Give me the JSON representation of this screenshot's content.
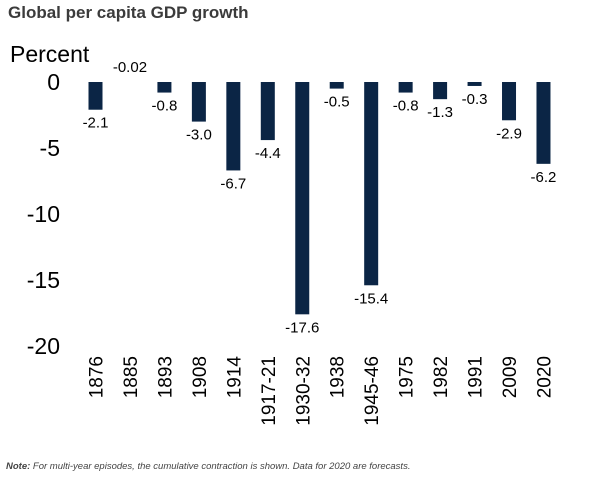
{
  "chart_data": {
    "type": "bar",
    "title": "Global per capita GDP growth",
    "ylabel": "Percent",
    "xlabel": "",
    "categories": [
      "1876",
      "1885",
      "1893",
      "1908",
      "1914",
      "1917-21",
      "1930-32",
      "1938",
      "1945-46",
      "1975",
      "1982",
      "1991",
      "2009",
      "2020"
    ],
    "values": [
      -2.1,
      -0.02,
      -0.8,
      -3.0,
      -6.7,
      -4.4,
      -17.6,
      -0.5,
      -15.4,
      -0.8,
      -1.3,
      -0.3,
      -2.9,
      -6.2
    ],
    "data_labels": [
      "-2.1",
      "-0.02",
      "-0.8",
      "-3.0",
      "-6.7",
      "-4.4",
      "-17.6",
      "-0.5",
      "-15.4",
      "-0.8",
      "-1.3",
      "-0.3",
      "-2.9",
      "-6.2"
    ],
    "ylim": [
      -20,
      0
    ],
    "yticks": [
      0,
      -5,
      -10,
      -15,
      -20
    ],
    "ytick_labels": [
      "0",
      "-5",
      "-10",
      "-15",
      "-20"
    ],
    "grid": false,
    "legend": "none",
    "bar_color": "#0b2545"
  },
  "note": {
    "prefix": "Note:",
    "text": "For multi-year episodes, the cumulative contraction is shown. Data for 2020 are forecasts."
  }
}
